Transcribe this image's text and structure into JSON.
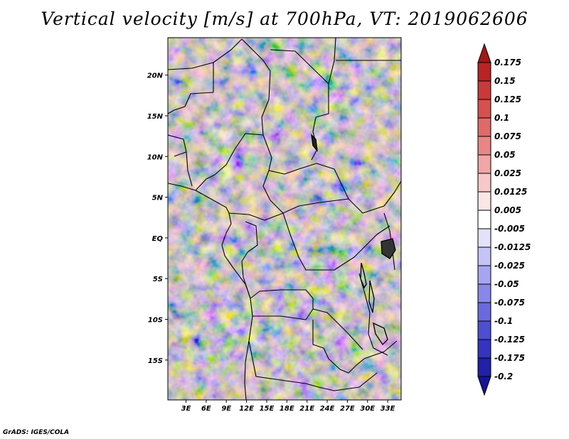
{
  "title": "Vertical velocity [m/s] at 700hPa, VT: 2019062606",
  "credit": "GrADS: IGES/COLA",
  "map": {
    "lat_labels": [
      "20N",
      "15N",
      "10N",
      "5N",
      "EQ",
      "5S",
      "10S",
      "15S"
    ],
    "lat_values": [
      20,
      15,
      10,
      5,
      0,
      -5,
      -10,
      -15
    ],
    "lon_labels": [
      "3E",
      "6E",
      "9E",
      "12E",
      "15E",
      "18E",
      "21E",
      "24E",
      "27E",
      "30E",
      "33E"
    ],
    "lon_values": [
      3,
      6,
      9,
      12,
      15,
      18,
      21,
      24,
      27,
      30,
      33
    ],
    "lon_range": [
      0.3,
      35
    ],
    "lat_range": [
      -19.9,
      24.6
    ]
  },
  "colorbar": {
    "labels": [
      "0.175",
      "0.15",
      "0.125",
      "0.1",
      "0.075",
      "0.05",
      "0.025",
      "0.0125",
      "0.005",
      "-0.005",
      "-0.0125",
      "-0.025",
      "-0.05",
      "-0.075",
      "-0.1",
      "-0.125",
      "-0.175",
      "-0.2"
    ],
    "colors": [
      "#a01818",
      "#b82424",
      "#c83a3a",
      "#d65050",
      "#e06a6a",
      "#e88686",
      "#f0a6a6",
      "#f6c8c8",
      "#fbe6e6",
      "#ffffff",
      "#e2e2fb",
      "#c4c4f6",
      "#a6a6f0",
      "#8888e8",
      "#6a6ade",
      "#4e4ed2",
      "#3434c0",
      "#2020a8",
      "#14149a"
    ]
  }
}
